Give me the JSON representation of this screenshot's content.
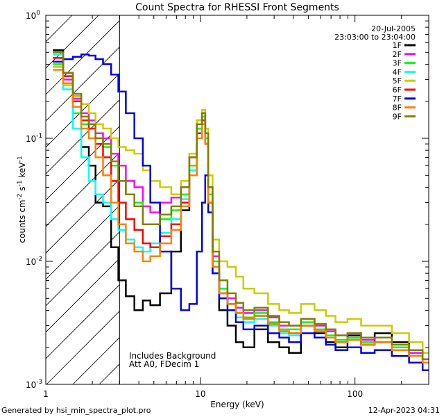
{
  "chart_data": {
    "type": "line",
    "title": "Count Spectra for RHESSI Front Segments",
    "xlabel": "Energy (keV)",
    "ylabel_parts": [
      "counts cm",
      "-2",
      " s",
      "-1",
      " keV",
      "-1"
    ],
    "xscale": "log",
    "yscale": "log",
    "xlim": [
      1,
      300
    ],
    "ylim": [
      0.001,
      1
    ],
    "x_ticks": [
      {
        "value": 1,
        "label": "1"
      },
      {
        "value": 10,
        "label": "10"
      },
      {
        "value": 100,
        "label": "100"
      }
    ],
    "y_ticks": [
      {
        "value": 1,
        "base": "10",
        "exp": "0"
      },
      {
        "value": 0.1,
        "base": "10",
        "exp": "-1"
      },
      {
        "value": 0.01,
        "base": "10",
        "exp": "-2"
      },
      {
        "value": 0.001,
        "base": "10",
        "exp": "-3"
      }
    ],
    "date": "20-Jul-2005",
    "time_range": "23:03:00 to 23:04:00",
    "notes": [
      "Includes Background",
      "Att A0, FDecim 1"
    ],
    "shaded_region": {
      "from": 1,
      "to": 3,
      "style": "diagonal-hatch"
    },
    "legend_position": "top-right",
    "series": [
      {
        "name": "1F",
        "color": "#000000",
        "energy": [
          1.2,
          1.4,
          1.6,
          1.8,
          2.0,
          2.2,
          2.5,
          2.8,
          3.1,
          3.5,
          4.0,
          4.5,
          5.0,
          6.0,
          7.0,
          8.0,
          9.0,
          10.0,
          10.5,
          11.0,
          11.5,
          12.5,
          14,
          16,
          18,
          20,
          25,
          30,
          35,
          40,
          50,
          60,
          70,
          80,
          100,
          120,
          150,
          200,
          250,
          300
        ],
        "counts": [
          0.52,
          0.34,
          0.22,
          0.085,
          0.06,
          0.03,
          0.028,
          0.013,
          0.007,
          0.0052,
          0.004,
          0.0048,
          0.0044,
          0.0055,
          0.012,
          0.026,
          0.05,
          0.13,
          0.16,
          0.09,
          0.03,
          0.008,
          0.004,
          0.003,
          0.0022,
          0.002,
          0.0028,
          0.0022,
          0.002,
          0.0018,
          0.003,
          0.0026,
          0.0022,
          0.002,
          0.0025,
          0.0021,
          0.0026,
          0.0022,
          0.0018,
          0.0015
        ]
      },
      {
        "name": "2F",
        "color": "#ff00ff",
        "energy": [
          1.2,
          1.4,
          1.6,
          1.8,
          2.0,
          2.2,
          2.5,
          2.8,
          3.1,
          3.5,
          4.0,
          4.5,
          5.0,
          6.0,
          7.0,
          8.0,
          9.0,
          10.0,
          10.5,
          11.0,
          11.5,
          12.5,
          14,
          16,
          18,
          20,
          25,
          30,
          35,
          40,
          50,
          60,
          70,
          80,
          100,
          120,
          150,
          200,
          250,
          300
        ],
        "counts": [
          0.42,
          0.3,
          0.21,
          0.16,
          0.14,
          0.11,
          0.1,
          0.075,
          0.06,
          0.045,
          0.04,
          0.028,
          0.025,
          0.03,
          0.033,
          0.04,
          0.07,
          0.14,
          0.17,
          0.11,
          0.04,
          0.011,
          0.006,
          0.005,
          0.0042,
          0.0038,
          0.004,
          0.0035,
          0.003,
          0.003,
          0.0034,
          0.003,
          0.0027,
          0.0025,
          0.0026,
          0.0023,
          0.0024,
          0.002,
          0.0018,
          0.0016
        ]
      },
      {
        "name": "3F",
        "color": "#00ff00",
        "energy": [
          1.2,
          1.4,
          1.6,
          1.8,
          2.0,
          2.2,
          2.5,
          2.8,
          3.1,
          3.5,
          4.0,
          4.5,
          5.0,
          6.0,
          7.0,
          8.0,
          9.0,
          10.0,
          10.5,
          11.0,
          11.5,
          12.5,
          14,
          16,
          18,
          20,
          25,
          30,
          35,
          40,
          50,
          60,
          70,
          80,
          100,
          120,
          150,
          200,
          250,
          300
        ],
        "counts": [
          0.4,
          0.25,
          0.16,
          0.13,
          0.13,
          0.1,
          0.085,
          0.06,
          0.045,
          0.035,
          0.03,
          0.02,
          0.02,
          0.022,
          0.026,
          0.035,
          0.06,
          0.12,
          0.15,
          0.1,
          0.035,
          0.01,
          0.006,
          0.0045,
          0.0038,
          0.0035,
          0.0038,
          0.0032,
          0.0028,
          0.0028,
          0.0032,
          0.0028,
          0.0025,
          0.0023,
          0.0024,
          0.0022,
          0.0022,
          0.002,
          0.0017,
          0.0015
        ]
      },
      {
        "name": "4F",
        "color": "#00ffff",
        "energy": [
          1.2,
          1.4,
          1.6,
          1.8,
          2.0,
          2.2,
          2.5,
          2.8,
          3.1,
          3.5,
          4.0,
          4.5,
          5.0,
          6.0,
          7.0,
          8.0,
          9.0,
          10.0,
          10.5,
          11.0,
          11.5,
          12.5,
          14,
          16,
          18,
          20,
          25,
          30,
          35,
          40,
          50,
          60,
          70,
          80,
          100,
          120,
          150,
          200,
          250,
          300
        ],
        "counts": [
          0.48,
          0.25,
          0.12,
          0.07,
          0.045,
          0.035,
          0.03,
          0.022,
          0.018,
          0.015,
          0.013,
          0.012,
          0.014,
          0.017,
          0.022,
          0.032,
          0.055,
          0.11,
          0.14,
          0.09,
          0.03,
          0.009,
          0.005,
          0.004,
          0.0035,
          0.0032,
          0.0034,
          0.003,
          0.0026,
          0.0025,
          0.003,
          0.0027,
          0.0024,
          0.0022,
          0.0023,
          0.0021,
          0.0022,
          0.0019,
          0.0017,
          0.0015
        ]
      },
      {
        "name": "5F",
        "color": "#cccc00",
        "energy": [
          1.2,
          1.4,
          1.6,
          1.8,
          2.0,
          2.2,
          2.5,
          2.8,
          3.1,
          3.5,
          4.0,
          4.5,
          5.0,
          6.0,
          7.0,
          8.0,
          9.0,
          10.0,
          10.5,
          11.0,
          11.5,
          12.5,
          14,
          16,
          18,
          20,
          25,
          30,
          35,
          40,
          50,
          60,
          70,
          80,
          100,
          120,
          150,
          200,
          250,
          300
        ],
        "counts": [
          0.38,
          0.27,
          0.22,
          0.19,
          0.16,
          0.13,
          0.12,
          0.1,
          0.085,
          0.08,
          0.075,
          0.055,
          0.045,
          0.04,
          0.035,
          0.045,
          0.075,
          0.14,
          0.17,
          0.12,
          0.05,
          0.015,
          0.01,
          0.009,
          0.0075,
          0.006,
          0.0055,
          0.0045,
          0.004,
          0.0038,
          0.0045,
          0.004,
          0.0036,
          0.0032,
          0.0034,
          0.003,
          0.003,
          0.0026,
          0.0022,
          0.0018
        ]
      },
      {
        "name": "6F",
        "color": "#ff0000",
        "energy": [
          1.2,
          1.4,
          1.6,
          1.8,
          2.0,
          2.2,
          2.5,
          2.8,
          3.1,
          3.5,
          4.0,
          4.5,
          5.0,
          6.0,
          7.0,
          8.0,
          9.0,
          10.0,
          10.5,
          11.0,
          11.5,
          12.5,
          14,
          16,
          18,
          20,
          25,
          30,
          35,
          40,
          50,
          60,
          70,
          80,
          100,
          120,
          150,
          200,
          250,
          300
        ],
        "counts": [
          0.45,
          0.32,
          0.2,
          0.14,
          0.12,
          0.09,
          0.07,
          0.045,
          0.03,
          0.022,
          0.018,
          0.014,
          0.013,
          0.016,
          0.02,
          0.03,
          0.05,
          0.11,
          0.14,
          0.09,
          0.03,
          0.009,
          0.0055,
          0.0045,
          0.0038,
          0.0034,
          0.0036,
          0.0031,
          0.0027,
          0.0026,
          0.003,
          0.0027,
          0.0024,
          0.0022,
          0.0023,
          0.0021,
          0.0022,
          0.0019,
          0.0017,
          0.0015
        ]
      },
      {
        "name": "7F",
        "color": "#0000dd",
        "energy": [
          1.2,
          1.4,
          1.6,
          1.8,
          2.0,
          2.2,
          2.5,
          2.8,
          3.1,
          3.5,
          4.0,
          4.5,
          5.0,
          6.0,
          7.0,
          8.0,
          9.0,
          10.0,
          10.5,
          11.0,
          11.5,
          12.5,
          14,
          16,
          18,
          20,
          25,
          30,
          35,
          40,
          50,
          60,
          70,
          80,
          100,
          120,
          150,
          200,
          250,
          300
        ],
        "counts": [
          0.42,
          0.44,
          0.46,
          0.48,
          0.47,
          0.44,
          0.4,
          0.33,
          0.24,
          0.16,
          0.1,
          0.06,
          0.03,
          0.012,
          0.006,
          0.004,
          0.0045,
          0.012,
          0.03,
          0.05,
          0.025,
          0.008,
          0.005,
          0.004,
          0.0032,
          0.0028,
          0.003,
          0.0026,
          0.0024,
          0.0022,
          0.0026,
          0.0024,
          0.0021,
          0.0019,
          0.002,
          0.0018,
          0.0019,
          0.0017,
          0.0015,
          0.0013
        ]
      },
      {
        "name": "8F",
        "color": "#ff8000",
        "energy": [
          1.2,
          1.4,
          1.6,
          1.8,
          2.0,
          2.2,
          2.5,
          2.8,
          3.1,
          3.5,
          4.0,
          4.5,
          5.0,
          6.0,
          7.0,
          8.0,
          9.0,
          10.0,
          10.5,
          11.0,
          11.5,
          12.5,
          14,
          16,
          18,
          20,
          25,
          30,
          35,
          40,
          50,
          60,
          70,
          80,
          100,
          120,
          150,
          200,
          250,
          300
        ],
        "counts": [
          0.36,
          0.28,
          0.18,
          0.12,
          0.1,
          0.07,
          0.05,
          0.03,
          0.02,
          0.014,
          0.012,
          0.01,
          0.011,
          0.014,
          0.018,
          0.028,
          0.05,
          0.1,
          0.13,
          0.09,
          0.03,
          0.009,
          0.0055,
          0.0045,
          0.0038,
          0.0034,
          0.0036,
          0.0031,
          0.0027,
          0.0026,
          0.003,
          0.0027,
          0.0024,
          0.0022,
          0.0023,
          0.0021,
          0.0022,
          0.0019,
          0.0017,
          0.0015
        ]
      },
      {
        "name": "9F",
        "color": "#808000",
        "energy": [
          1.2,
          1.4,
          1.6,
          1.8,
          2.0,
          2.2,
          2.5,
          2.8,
          3.1,
          3.5,
          4.0,
          4.5,
          5.0,
          6.0,
          7.0,
          8.0,
          9.0,
          10.0,
          10.5,
          11.0,
          11.5,
          12.5,
          14,
          16,
          18,
          20,
          25,
          30,
          35,
          40,
          50,
          60,
          70,
          80,
          100,
          120,
          150,
          200,
          250,
          300
        ],
        "counts": [
          0.5,
          0.34,
          0.23,
          0.15,
          0.13,
          0.1,
          0.09,
          0.065,
          0.045,
          0.035,
          0.028,
          0.02,
          0.02,
          0.024,
          0.028,
          0.04,
          0.07,
          0.13,
          0.16,
          0.11,
          0.04,
          0.012,
          0.007,
          0.0055,
          0.0046,
          0.004,
          0.0042,
          0.0036,
          0.0032,
          0.003,
          0.0034,
          0.0031,
          0.0028,
          0.0025,
          0.0026,
          0.0024,
          0.0024,
          0.0021,
          0.0019,
          0.0016
        ]
      }
    ]
  },
  "footer": {
    "generated_by": "Generated by hsi_min_spectra_plot.pro",
    "timestamp": "12-Apr-2023 04:31"
  }
}
